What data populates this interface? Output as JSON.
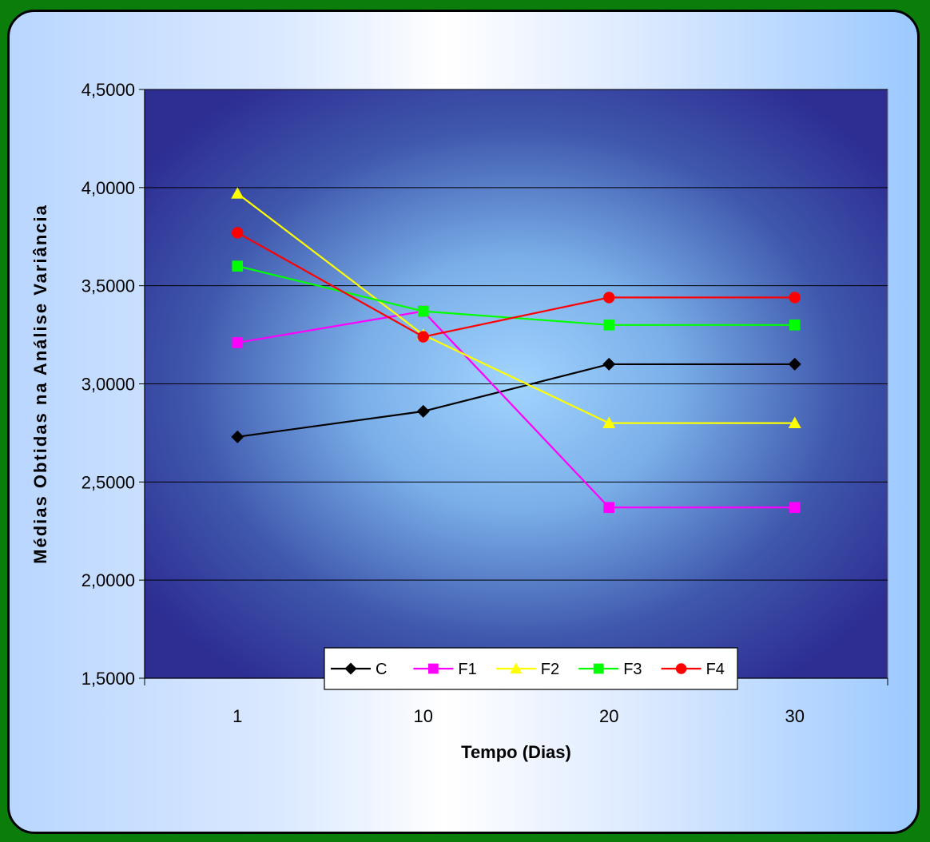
{
  "chart_data": {
    "type": "line",
    "title": "",
    "xlabel": "Tempo (Dias)",
    "ylabel": "Médias Obtidas na Análise Variância",
    "categories": [
      "1",
      "10",
      "20",
      "30"
    ],
    "ylim": [
      1.5,
      4.5
    ],
    "yticks": [
      {
        "value": 4.5,
        "label": "4,5000"
      },
      {
        "value": 4.0,
        "label": "4,0000"
      },
      {
        "value": 3.5,
        "label": "3,5000"
      },
      {
        "value": 3.0,
        "label": "3,0000"
      },
      {
        "value": 2.5,
        "label": "2,5000"
      },
      {
        "value": 2.0,
        "label": "2,0000"
      },
      {
        "value": 1.5,
        "label": "1,5000"
      }
    ],
    "grid": "horizontal",
    "legend_position": "bottom",
    "series": [
      {
        "name": "C",
        "color": "#000000",
        "marker": "diamond",
        "values": [
          2.73,
          2.86,
          3.1,
          3.1
        ]
      },
      {
        "name": "F1",
        "color": "#ff00ff",
        "marker": "square",
        "values": [
          3.21,
          3.37,
          2.37,
          2.37
        ]
      },
      {
        "name": "F2",
        "color": "#ffff00",
        "marker": "triangle",
        "values": [
          3.97,
          3.25,
          2.8,
          2.8
        ]
      },
      {
        "name": "F3",
        "color": "#00ff00",
        "marker": "square",
        "values": [
          3.6,
          3.37,
          3.3,
          3.3
        ]
      },
      {
        "name": "F4",
        "color": "#ff0000",
        "marker": "circle",
        "values": [
          3.77,
          3.24,
          3.44,
          3.44
        ]
      }
    ]
  }
}
